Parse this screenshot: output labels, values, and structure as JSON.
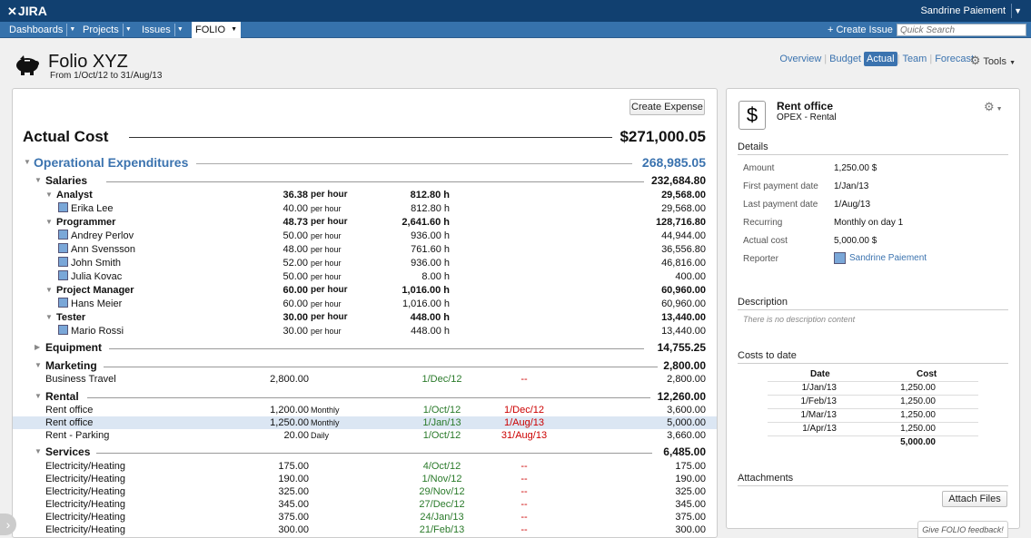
{
  "topbar": {
    "logo": "JIRA",
    "user": "Sandrine Paiement"
  },
  "nav": {
    "items": [
      "Dashboards",
      "Projects",
      "Issues"
    ],
    "active": "FOLIO",
    "create_issue": "Create Issue",
    "search_placeholder": "Quick Search"
  },
  "header": {
    "title": "Folio XYZ",
    "range": "From 1/Oct/12 to 31/Aug/13",
    "tabs": [
      "Overview",
      "Budget",
      "Actual",
      "Team",
      "Forecast"
    ],
    "active_tab": "Actual",
    "tools": "Tools"
  },
  "main": {
    "create_expense": "Create Expense",
    "actual_cost_label": "Actual Cost",
    "actual_cost_total": "$271,000.05",
    "opex": {
      "label": "Operational Expenditures",
      "total": "268,985.05"
    },
    "salaries": {
      "label": "Salaries",
      "total": "232,684.80",
      "groups": [
        {
          "name": "Analyst",
          "rate": "36.38",
          "unit": "per hour",
          "hours": "812.80 h",
          "cost": "29,568.00",
          "people": [
            {
              "name": "Erika Lee",
              "rate": "40.00",
              "unit": "per hour",
              "hours": "812.80 h",
              "cost": "29,568.00"
            }
          ]
        },
        {
          "name": "Programmer",
          "rate": "48.73",
          "unit": "per hour",
          "hours": "2,641.60 h",
          "cost": "128,716.80",
          "people": [
            {
              "name": "Andrey Perlov",
              "rate": "50.00",
              "unit": "per hour",
              "hours": "936.00 h",
              "cost": "44,944.00"
            },
            {
              "name": "Ann Svensson",
              "rate": "48.00",
              "unit": "per hour",
              "hours": "761.60 h",
              "cost": "36,556.80"
            },
            {
              "name": "John Smith",
              "rate": "52.00",
              "unit": "per hour",
              "hours": "936.00 h",
              "cost": "46,816.00"
            },
            {
              "name": "Julia Kovac",
              "rate": "50.00",
              "unit": "per hour",
              "hours": "8.00 h",
              "cost": "400.00"
            }
          ]
        },
        {
          "name": "Project Manager",
          "rate": "60.00",
          "unit": "per hour",
          "hours": "1,016.00 h",
          "cost": "60,960.00",
          "people": [
            {
              "name": "Hans Meier",
              "rate": "60.00",
              "unit": "per hour",
              "hours": "1,016.00 h",
              "cost": "60,960.00"
            }
          ]
        },
        {
          "name": "Tester",
          "rate": "30.00",
          "unit": "per hour",
          "hours": "448.00 h",
          "cost": "13,440.00",
          "people": [
            {
              "name": "Mario Rossi",
              "rate": "30.00",
              "unit": "per hour",
              "hours": "448.00 h",
              "cost": "13,440.00"
            }
          ]
        }
      ]
    },
    "equipment": {
      "label": "Equipment",
      "total": "14,755.25"
    },
    "marketing": {
      "label": "Marketing",
      "total": "2,800.00",
      "rows": [
        {
          "name": "Business Travel",
          "amount": "2,800.00",
          "per": "",
          "start": "1/Dec/12",
          "end": "--",
          "cost": "2,800.00"
        }
      ]
    },
    "rental": {
      "label": "Rental",
      "total": "12,260.00",
      "rows": [
        {
          "name": "Rent office",
          "amount": "1,200.00",
          "per": "Monthly",
          "start": "1/Oct/12",
          "end": "1/Dec/12",
          "cost": "3,600.00"
        },
        {
          "name": "Rent office",
          "amount": "1,250.00",
          "per": "Monthly",
          "start": "1/Jan/13",
          "end": "1/Aug/13",
          "cost": "5,000.00"
        },
        {
          "name": "Rent - Parking",
          "amount": "20.00",
          "per": "Daily",
          "start": "1/Oct/12",
          "end": "31/Aug/13",
          "cost": "3,660.00"
        }
      ]
    },
    "services": {
      "label": "Services",
      "total": "6,485.00",
      "rows": [
        {
          "name": "Electricity/Heating",
          "amount": "175.00",
          "start": "4/Oct/12",
          "end": "--",
          "cost": "175.00"
        },
        {
          "name": "Electricity/Heating",
          "amount": "190.00",
          "start": "1/Nov/12",
          "end": "--",
          "cost": "190.00"
        },
        {
          "name": "Electricity/Heating",
          "amount": "325.00",
          "start": "29/Nov/12",
          "end": "--",
          "cost": "325.00"
        },
        {
          "name": "Electricity/Heating",
          "amount": "345.00",
          "start": "27/Dec/12",
          "end": "--",
          "cost": "345.00"
        },
        {
          "name": "Electricity/Heating",
          "amount": "375.00",
          "start": "24/Jan/13",
          "end": "--",
          "cost": "375.00"
        },
        {
          "name": "Electricity/Heating",
          "amount": "300.00",
          "start": "21/Feb/13",
          "end": "--",
          "cost": "300.00"
        }
      ]
    }
  },
  "detail": {
    "title": "Rent office",
    "subtitle": "OPEX - Rental",
    "details_label": "Details",
    "fields": [
      {
        "k": "Amount",
        "v": "1,250.00 $"
      },
      {
        "k": "First payment date",
        "v": "1/Jan/13"
      },
      {
        "k": "Last payment date",
        "v": "1/Aug/13"
      },
      {
        "k": "Recurring",
        "v": "Monthly on day 1"
      },
      {
        "k": "Actual cost",
        "v": "5,000.00 $"
      },
      {
        "k": "Reporter",
        "v": "Sandrine Paiement"
      }
    ],
    "description_label": "Description",
    "description_empty": "There is no description content",
    "costs_label": "Costs to date",
    "costs_headers": [
      "Date",
      "Cost"
    ],
    "costs_rows": [
      {
        "date": "1/Jan/13",
        "cost": "1,250.00"
      },
      {
        "date": "1/Feb/13",
        "cost": "1,250.00"
      },
      {
        "date": "1/Mar/13",
        "cost": "1,250.00"
      },
      {
        "date": "1/Apr/13",
        "cost": "1,250.00"
      }
    ],
    "costs_total": "5,000.00",
    "attachments_label": "Attachments",
    "attach_button": "Attach Files"
  },
  "feedback": "Give FOLIO feedback!",
  "colors": {
    "topbar": "#114070",
    "navbar": "#3672ac",
    "link": "#3b73af",
    "green": "#2a7a2a",
    "red": "#cc0000"
  }
}
